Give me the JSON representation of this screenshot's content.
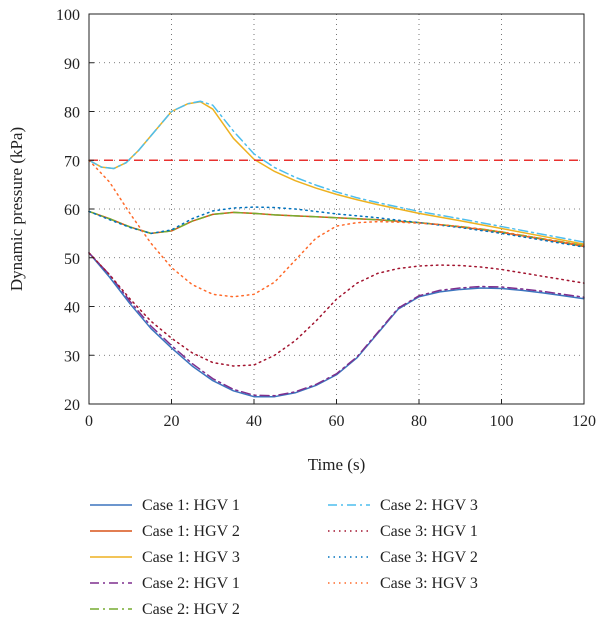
{
  "chart_data": {
    "type": "line",
    "title": "",
    "xlabel": "Time (s)",
    "ylabel": "Dynamic pressure (kPa)",
    "xlim": [
      0,
      120
    ],
    "ylim": [
      20,
      100
    ],
    "xticks": [
      0,
      20,
      40,
      60,
      80,
      100,
      120
    ],
    "yticks": [
      20,
      30,
      40,
      50,
      60,
      70,
      80,
      90,
      100
    ],
    "grid": "dotted",
    "legend_position": "bottom",
    "reference_line": {
      "y": 70,
      "color": "#e8312f",
      "style": "dashed"
    },
    "series": [
      {
        "name": "Case 1: HGV 1",
        "color": "#3b74be",
        "style": "solid",
        "x": [
          0,
          5,
          10,
          15,
          20,
          25,
          30,
          35,
          40,
          45,
          50,
          55,
          60,
          65,
          70,
          75,
          80,
          85,
          90,
          95,
          100,
          105,
          110,
          115,
          120
        ],
        "y": [
          51,
          46,
          40.5,
          35.5,
          31.5,
          27.8,
          24.8,
          22.7,
          21.5,
          21.5,
          22.3,
          23.8,
          26,
          29.5,
          34.5,
          39.5,
          42,
          43,
          43.5,
          43.8,
          43.7,
          43.3,
          42.8,
          42.2,
          41.6
        ]
      },
      {
        "name": "Case 1: HGV 2",
        "color": "#d95319",
        "style": "solid",
        "x": [
          0,
          5,
          10,
          15,
          20,
          25,
          30,
          35,
          40,
          45,
          50,
          55,
          60,
          65,
          70,
          75,
          80,
          85,
          90,
          95,
          100,
          105,
          110,
          115,
          120
        ],
        "y": [
          59.5,
          58,
          56.3,
          55,
          55.5,
          57.5,
          58.9,
          59.3,
          59.1,
          58.8,
          58.6,
          58.4,
          58.2,
          58,
          57.8,
          57.5,
          57.2,
          56.8,
          56.3,
          55.8,
          55.2,
          54.5,
          53.8,
          53.1,
          52.3
        ]
      },
      {
        "name": "Case 1: HGV 3",
        "color": "#edb120",
        "style": "solid",
        "x": [
          0,
          3,
          6,
          9,
          12,
          16,
          20,
          24,
          27,
          30,
          35,
          40,
          45,
          50,
          55,
          60,
          65,
          70,
          80,
          90,
          100,
          110,
          120
        ],
        "y": [
          70,
          68.6,
          68.3,
          69.5,
          72,
          76,
          80,
          81.6,
          82,
          80.5,
          74.5,
          70.2,
          67.7,
          65.8,
          64.3,
          63,
          61.9,
          60.9,
          59.1,
          57.6,
          56,
          54.4,
          52.8
        ]
      },
      {
        "name": "Case 2: HGV 1",
        "color": "#7e2f8e",
        "style": "dashdot",
        "x": [
          0,
          5,
          10,
          15,
          20,
          25,
          30,
          35,
          40,
          45,
          50,
          55,
          60,
          65,
          70,
          75,
          80,
          85,
          90,
          95,
          100,
          105,
          110,
          115,
          120
        ],
        "y": [
          51,
          46.5,
          41,
          36,
          32,
          28.3,
          25.2,
          23,
          21.8,
          21.7,
          22.5,
          24,
          26.2,
          29.7,
          34.7,
          39.7,
          42.2,
          43.3,
          43.8,
          44.1,
          44,
          43.6,
          43.1,
          42.5,
          41.9
        ]
      },
      {
        "name": "Case 2: HGV 2",
        "color": "#77ac30",
        "style": "dashdot",
        "x": [
          0,
          5,
          10,
          15,
          20,
          25,
          30,
          35,
          40,
          45,
          50,
          55,
          60,
          65,
          70,
          75,
          80,
          85,
          90,
          95,
          100,
          105,
          110,
          115,
          120
        ],
        "y": [
          59.5,
          58,
          56.3,
          55,
          55.5,
          57.5,
          58.9,
          59.3,
          59.1,
          58.8,
          58.6,
          58.4,
          58.2,
          58,
          57.8,
          57.5,
          57.2,
          56.8,
          56.4,
          55.9,
          55.3,
          54.6,
          53.9,
          53.2,
          52.5
        ]
      },
      {
        "name": "Case 2: HGV 3",
        "color": "#4dbeee",
        "style": "dashdot",
        "x": [
          0,
          3,
          6,
          9,
          12,
          16,
          20,
          24,
          27,
          30,
          35,
          40,
          45,
          50,
          55,
          60,
          65,
          70,
          80,
          90,
          100,
          110,
          120
        ],
        "y": [
          70,
          68.6,
          68.3,
          69.5,
          72,
          76,
          80,
          81.6,
          82.1,
          81.3,
          76,
          71.3,
          68.5,
          66.5,
          64.9,
          63.5,
          62.3,
          61.3,
          59.5,
          58,
          56.4,
          54.8,
          53.2
        ]
      },
      {
        "name": "Case 3: HGV 1",
        "color": "#a2142f",
        "style": "dotted",
        "x": [
          0,
          5,
          10,
          15,
          20,
          25,
          30,
          35,
          40,
          45,
          50,
          55,
          60,
          65,
          70,
          75,
          80,
          85,
          90,
          95,
          100,
          105,
          110,
          115,
          120
        ],
        "y": [
          51,
          46.5,
          41.5,
          37,
          33.5,
          30.5,
          28.5,
          27.8,
          28,
          30,
          33,
          37,
          41.5,
          44.8,
          46.8,
          47.8,
          48.3,
          48.5,
          48.4,
          48.1,
          47.6,
          46.9,
          46.2,
          45.5,
          44.8
        ]
      },
      {
        "name": "Case 3: HGV 2",
        "color": "#0072bd",
        "style": "dotted",
        "x": [
          0,
          5,
          10,
          15,
          20,
          25,
          30,
          35,
          40,
          45,
          50,
          55,
          60,
          65,
          70,
          75,
          80,
          85,
          90,
          95,
          100,
          105,
          110,
          115,
          120
        ],
        "y": [
          59.5,
          57.8,
          56.2,
          55,
          55.7,
          58,
          59.6,
          60.2,
          60.4,
          60.3,
          60,
          59.5,
          59,
          58.6,
          58.2,
          57.7,
          57.2,
          56.7,
          56.2,
          55.6,
          55,
          54.3,
          53.6,
          52.9,
          52.2
        ]
      },
      {
        "name": "Case 3: HGV 3",
        "color": "#ff6a2a",
        "style": "dotted",
        "x": [
          0,
          5,
          10,
          15,
          20,
          25,
          30,
          35,
          40,
          45,
          50,
          55,
          60,
          65,
          70,
          75,
          80,
          85,
          90,
          95,
          100,
          105,
          110,
          115,
          120
        ],
        "y": [
          70,
          65.5,
          59,
          53,
          48,
          44.5,
          42.5,
          42,
          42.5,
          45,
          49.5,
          54,
          56.5,
          57.2,
          57.4,
          57.3,
          57.1,
          56.8,
          56.4,
          55.9,
          55.3,
          54.6,
          53.9,
          53.2,
          52.5
        ]
      }
    ]
  }
}
